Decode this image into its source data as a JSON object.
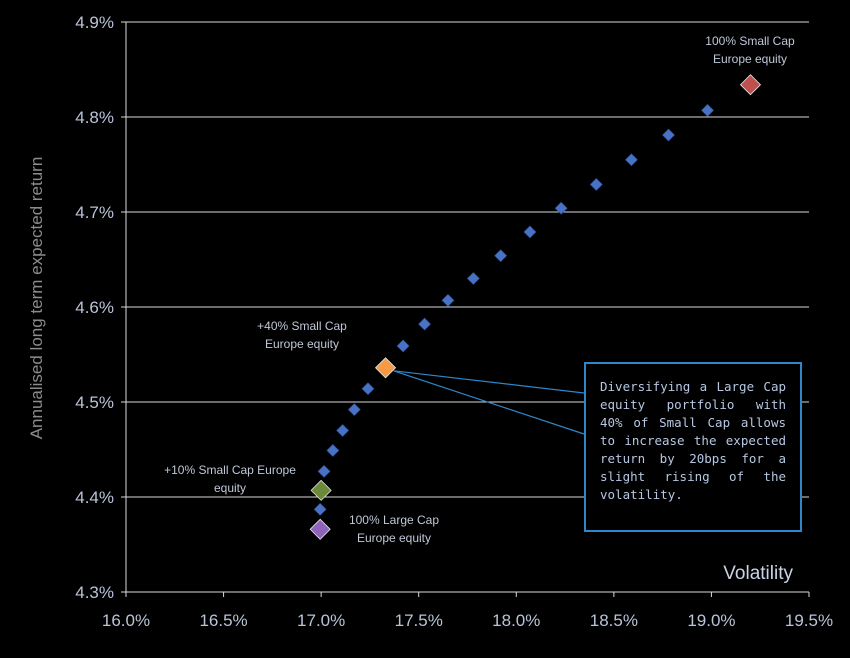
{
  "chart_data": {
    "type": "scatter",
    "xlabel": "Volatility",
    "ylabel": "Annualised long term expected return",
    "xlim": [
      0.16,
      0.195
    ],
    "ylim": [
      0.043,
      0.049
    ],
    "x_ticks": [
      "16.0%",
      "16.5%",
      "17.0%",
      "17.5%",
      "18.0%",
      "18.5%",
      "19.0%",
      "19.5%"
    ],
    "y_ticks": [
      "4.3%",
      "4.4%",
      "4.5%",
      "4.6%",
      "4.7%",
      "4.8%",
      "4.9%"
    ],
    "grid": "horizontal",
    "series": [
      {
        "color": "#4a72c4",
        "points": [
          {
            "x": 0.16995,
            "y": 0.04387
          },
          {
            "x": 0.17015,
            "y": 0.04427
          },
          {
            "x": 0.1706,
            "y": 0.04449
          },
          {
            "x": 0.1711,
            "y": 0.0447
          },
          {
            "x": 0.1717,
            "y": 0.04492
          },
          {
            "x": 0.1724,
            "y": 0.04514
          },
          {
            "x": 0.1742,
            "y": 0.04559
          },
          {
            "x": 0.1753,
            "y": 0.04582
          },
          {
            "x": 0.1765,
            "y": 0.04607
          },
          {
            "x": 0.1778,
            "y": 0.0463
          },
          {
            "x": 0.1792,
            "y": 0.04654
          },
          {
            "x": 0.1807,
            "y": 0.04679
          },
          {
            "x": 0.1823,
            "y": 0.04704
          },
          {
            "x": 0.1841,
            "y": 0.04729
          },
          {
            "x": 0.1859,
            "y": 0.04755
          },
          {
            "x": 0.1878,
            "y": 0.04781
          },
          {
            "x": 0.1898,
            "y": 0.04807
          }
        ]
      }
    ],
    "highlights": [
      {
        "x": 0.16995,
        "y": 0.04366,
        "color": "#8e63b8",
        "label": [
          "100%  Large Cap",
          "Europe equity"
        ]
      },
      {
        "x": 0.17,
        "y": 0.04407,
        "color": "#6a8a3a",
        "label": [
          "+10% Small Cap Europe",
          "equity"
        ]
      },
      {
        "x": 0.1733,
        "y": 0.04536,
        "color": "#f59a45",
        "label": [
          "+40%  Small Cap",
          "Europe equity"
        ]
      },
      {
        "x": 0.192,
        "y": 0.04834,
        "color": "#c0504d",
        "label": [
          "100% Small Cap",
          "Europe equity"
        ]
      }
    ],
    "callout": "Diversifying a Large Cap equity portfolio with 40% of Small Cap allows to increase the expected return by 20bps for a slight rising of the volatility."
  }
}
